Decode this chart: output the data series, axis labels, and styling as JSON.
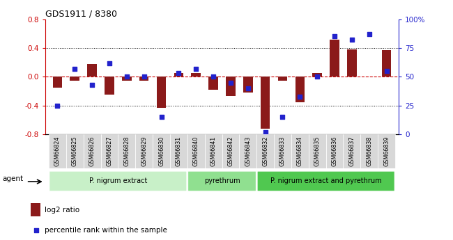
{
  "title": "GDS1911 / 8380",
  "samples": [
    "GSM66824",
    "GSM66825",
    "GSM66826",
    "GSM66827",
    "GSM66828",
    "GSM66829",
    "GSM66830",
    "GSM66831",
    "GSM66840",
    "GSM66841",
    "GSM66842",
    "GSM66843",
    "GSM66832",
    "GSM66833",
    "GSM66834",
    "GSM66835",
    "GSM66836",
    "GSM66837",
    "GSM66838",
    "GSM66839"
  ],
  "log2_ratio": [
    -0.15,
    -0.05,
    0.18,
    -0.25,
    -0.05,
    -0.05,
    -0.43,
    0.05,
    0.05,
    -0.18,
    -0.27,
    -0.22,
    -0.72,
    -0.05,
    -0.35,
    0.05,
    0.52,
    0.38,
    0.0,
    0.37
  ],
  "percentile": [
    25,
    57,
    43,
    62,
    50,
    50,
    15,
    53,
    57,
    50,
    45,
    40,
    2,
    15,
    33,
    50,
    85,
    82,
    87,
    55
  ],
  "groups": [
    {
      "label": "P. nigrum extract",
      "start": 0,
      "end": 8,
      "color": "#c8f0c8"
    },
    {
      "label": "pyrethrum",
      "start": 8,
      "end": 12,
      "color": "#90e090"
    },
    {
      "label": "P. nigrum extract and pyrethrum",
      "start": 12,
      "end": 20,
      "color": "#50c850"
    }
  ],
  "bar_color": "#8b1a1a",
  "dot_color": "#2222cc",
  "ylim_left": [
    -0.8,
    0.8
  ],
  "ylim_right": [
    0,
    100
  ],
  "yticks_left": [
    -0.8,
    -0.4,
    0.0,
    0.4,
    0.8
  ],
  "yticks_right": [
    0,
    25,
    50,
    75,
    100
  ],
  "ytick_labels_right": [
    "0",
    "25",
    "50",
    "75",
    "100%"
  ],
  "hline_values": [
    -0.4,
    0.0,
    0.4
  ],
  "legend_bar_label": "log2 ratio",
  "legend_dot_label": "percentile rank within the sample",
  "agent_label": "agent"
}
